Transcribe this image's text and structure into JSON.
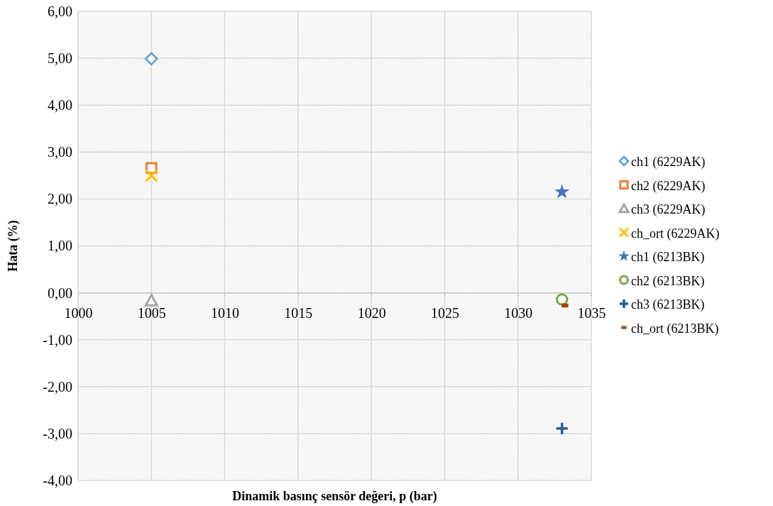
{
  "chart_data": {
    "type": "scatter",
    "xlabel": "Dinamik basınç sensör değeri, p (bar)",
    "ylabel": "Hata (%)",
    "xlim": [
      1000,
      1035
    ],
    "xticks": [
      1000,
      1005,
      1010,
      1015,
      1020,
      1025,
      1030,
      1035
    ],
    "ylim": [
      -4,
      6
    ],
    "yticks": [
      {
        "value": -4,
        "label": "-4,00"
      },
      {
        "value": -3,
        "label": "-3,00"
      },
      {
        "value": -2,
        "label": "-2,00"
      },
      {
        "value": -1,
        "label": "-1,00"
      },
      {
        "value": 0,
        "label": "0,00"
      },
      {
        "value": 1,
        "label": "1,00"
      },
      {
        "value": 2,
        "label": "2,00"
      },
      {
        "value": 3,
        "label": "3,00"
      },
      {
        "value": 4,
        "label": "4,00"
      },
      {
        "value": 5,
        "label": "5,00"
      },
      {
        "value": 6,
        "label": "6,00"
      }
    ],
    "grid": true,
    "legend": "right",
    "series": [
      {
        "name": "ch1 (6229AK)",
        "color": "#5b9bd5",
        "marker": "diamond",
        "x": [
          1005
        ],
        "values": [
          4.99
        ]
      },
      {
        "name": "ch2 (6229AK)",
        "color": "#ed7d31",
        "marker": "square",
        "x": [
          1005
        ],
        "values": [
          2.66
        ]
      },
      {
        "name": "ch3 (6229AK)",
        "color": "#a5a5a5",
        "marker": "triangle",
        "x": [
          1005
        ],
        "values": [
          -0.17
        ]
      },
      {
        "name": "ch_ort (6229AK)",
        "color": "#ffc000",
        "marker": "cross",
        "x": [
          1005
        ],
        "values": [
          2.5
        ]
      },
      {
        "name": "ch1 (6213BK)",
        "color": "#4472c4",
        "marker": "star",
        "x": [
          1033
        ],
        "values": [
          2.15
        ]
      },
      {
        "name": "ch2 (6213BK)",
        "color": "#70ad47",
        "marker": "circle",
        "x": [
          1033
        ],
        "values": [
          -0.14
        ]
      },
      {
        "name": "ch3 (6213BK)",
        "color": "#255e91",
        "marker": "plus",
        "x": [
          1033
        ],
        "values": [
          -2.89
        ]
      },
      {
        "name": "ch_ort (6213BK)",
        "color": "#9e480e",
        "x": [
          1033.2
        ],
        "values": [
          -0.27
        ]
      }
    ]
  }
}
